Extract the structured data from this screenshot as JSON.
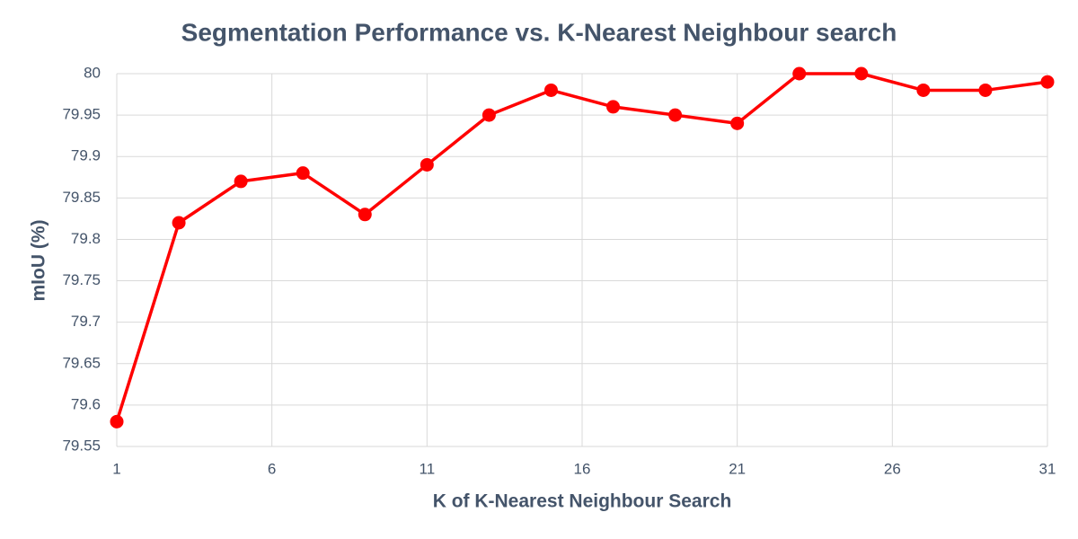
{
  "chart_data": {
    "type": "line",
    "title": "Segmentation Performance vs. K-Nearest Neighbour search",
    "x_label": "K of K-Nearest Neighbour Search",
    "y_label": "mIoU (%)",
    "x": [
      1,
      3,
      5,
      7,
      9,
      11,
      13,
      15,
      17,
      19,
      21,
      23,
      25,
      27,
      29,
      31
    ],
    "series": [
      {
        "name": "mIoU",
        "color": "#ff0000",
        "values": [
          79.58,
          79.82,
          79.87,
          79.88,
          79.83,
          79.89,
          79.95,
          79.98,
          79.96,
          79.95,
          79.94,
          80,
          80,
          79.98,
          79.98,
          79.99
        ]
      }
    ],
    "xlim": [
      1,
      31
    ],
    "xticks": [
      1,
      6,
      11,
      16,
      21,
      26,
      31
    ],
    "ylim": [
      79.55,
      80
    ],
    "yticks": [
      79.55,
      79.6,
      79.65,
      79.7,
      79.75,
      79.8,
      79.85,
      79.9,
      79.95,
      80
    ],
    "grid": true,
    "legend": false
  }
}
